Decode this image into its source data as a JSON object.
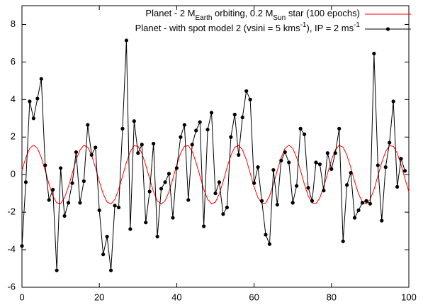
{
  "chart_data": {
    "type": "line",
    "xlim": [
      0,
      100
    ],
    "ylim": [
      -6,
      9
    ],
    "xticks": [
      0,
      20,
      40,
      60,
      80,
      100
    ],
    "yticks": [
      -6,
      -4,
      -2,
      0,
      2,
      4,
      6,
      8
    ],
    "legend": "top-right",
    "series": [
      {
        "name": [
          {
            "text": "Planet - 2 M"
          },
          {
            "text": "Earth",
            "shift": "sub"
          },
          {
            "text": " orbiting, 0.2 M"
          },
          {
            "text": "Sun",
            "shift": "sub"
          },
          {
            "text": " star (100 epochs)"
          }
        ],
        "color": "#ff0000",
        "points": false,
        "x": [
          0,
          1,
          2,
          3,
          4,
          5,
          6,
          7,
          8,
          9,
          10,
          11,
          12,
          13,
          14,
          15,
          16,
          17,
          18,
          19,
          20,
          21,
          22,
          23,
          24,
          25,
          26,
          27,
          28,
          29,
          30,
          31,
          32,
          33,
          34,
          35,
          36,
          37,
          38,
          39,
          40,
          41,
          42,
          43,
          44,
          45,
          46,
          47,
          48,
          49,
          50,
          51,
          52,
          53,
          54,
          55,
          56,
          57,
          58,
          59,
          60,
          61,
          62,
          63,
          64,
          65,
          66,
          67,
          68,
          69,
          70,
          71,
          72,
          73,
          74,
          75,
          76,
          77,
          78,
          79,
          80,
          81,
          82,
          83,
          84,
          85,
          86,
          87,
          88,
          89,
          90,
          91,
          92,
          93,
          94,
          95,
          96,
          97,
          98,
          99,
          100
        ],
        "values": [
          0.22,
          0.91,
          1.4,
          1.57,
          1.4,
          0.91,
          0.22,
          -0.51,
          -1.14,
          -1.51,
          -1.54,
          -1.23,
          -0.65,
          0.07,
          0.79,
          1.32,
          1.56,
          1.46,
          1.03,
          0.37,
          -0.37,
          -1.03,
          -1.46,
          -1.56,
          -1.32,
          -0.79,
          -0.07,
          0.65,
          1.23,
          1.54,
          1.51,
          1.14,
          0.51,
          -0.22,
          -0.91,
          -1.4,
          -1.57,
          -1.39,
          -0.91,
          -0.22,
          0.51,
          1.14,
          1.51,
          1.54,
          1.23,
          0.65,
          -0.07,
          -0.79,
          -1.32,
          -1.56,
          -1.46,
          -1.03,
          -0.37,
          0.37,
          1.03,
          1.46,
          1.56,
          1.32,
          0.79,
          0.07,
          -0.65,
          -1.23,
          -1.54,
          -1.51,
          -1.14,
          -0.51,
          0.22,
          0.91,
          1.4,
          1.57,
          1.4,
          0.91,
          0.22,
          -0.51,
          -1.14,
          -1.51,
          -1.54,
          -1.23,
          -0.65,
          0.07,
          0.79,
          1.32,
          1.56,
          1.46,
          1.03,
          0.37,
          -0.37,
          -1.03,
          -1.46,
          -1.56,
          -1.32,
          -0.79,
          -0.07,
          0.65,
          1.23,
          1.54,
          1.51,
          1.14,
          0.51,
          -0.22,
          -0.91
        ]
      },
      {
        "name": [
          {
            "text": "Planet - with spot model 2 (vsini = 5 kms"
          },
          {
            "text": "-1",
            "shift": "sup"
          },
          {
            "text": "), IP = 2 ms"
          },
          {
            "text": "-1",
            "shift": "sup"
          }
        ],
        "color": "#000000",
        "points": true,
        "x": [
          0,
          1,
          2,
          3,
          4,
          5,
          6,
          7,
          8,
          9,
          10,
          11,
          12,
          13,
          14,
          15,
          16,
          17,
          18,
          19,
          20,
          21,
          22,
          23,
          24,
          25,
          26,
          27,
          28,
          29,
          30,
          31,
          32,
          33,
          34,
          35,
          36,
          37,
          38,
          39,
          40,
          41,
          42,
          43,
          44,
          45,
          46,
          47,
          48,
          49,
          50,
          51,
          52,
          53,
          54,
          55,
          56,
          57,
          58,
          59,
          60,
          61,
          62,
          63,
          64,
          65,
          66,
          67,
          68,
          69,
          70,
          71,
          72,
          73,
          74,
          75,
          76,
          77,
          78,
          79,
          80,
          81,
          82,
          83,
          84,
          85,
          86,
          87,
          88,
          89,
          90,
          91,
          92,
          93,
          94,
          95,
          96,
          97,
          98,
          99
        ],
        "values": [
          -3.8,
          -0.4,
          3.9,
          3.0,
          4.05,
          5.1,
          0.5,
          -1.35,
          -0.8,
          -5.1,
          0.35,
          -2.2,
          -1.5,
          -0.45,
          1.2,
          -1.5,
          -0.35,
          2.65,
          1.05,
          1.45,
          -1.9,
          -4.25,
          -3.3,
          -5.1,
          -1.65,
          -1.75,
          2.45,
          7.15,
          -2.9,
          2.85,
          1.15,
          1.6,
          -2.55,
          -0.9,
          1.65,
          -3.3,
          -0.75,
          -0.4,
          0.05,
          -2.3,
          0.35,
          2.0,
          2.65,
          -1.35,
          1.6,
          2.35,
          2.8,
          -2.75,
          2.4,
          3.3,
          -1.0,
          -0.4,
          -2.1,
          -1.75,
          2.0,
          3.2,
          1.05,
          3.05,
          4.45,
          4.0,
          -0.45,
          0.4,
          -1.4,
          -3.2,
          -3.7,
          0.25,
          -1.6,
          0.75,
          1.2,
          0.65,
          -1.5,
          -0.6,
          2.45,
          2.15,
          -0.7,
          -1.4,
          0.65,
          0.55,
          -0.85,
          1.15,
          0.3,
          1.15,
          2.45,
          -3.55,
          -0.55,
          0.1,
          -2.3,
          -1.9,
          -1.5,
          -1.4,
          -1.55,
          6.45,
          0.5,
          -2.45,
          0.4,
          1.7,
          3.9,
          -0.65,
          0.85,
          0.2
        ]
      }
    ]
  }
}
